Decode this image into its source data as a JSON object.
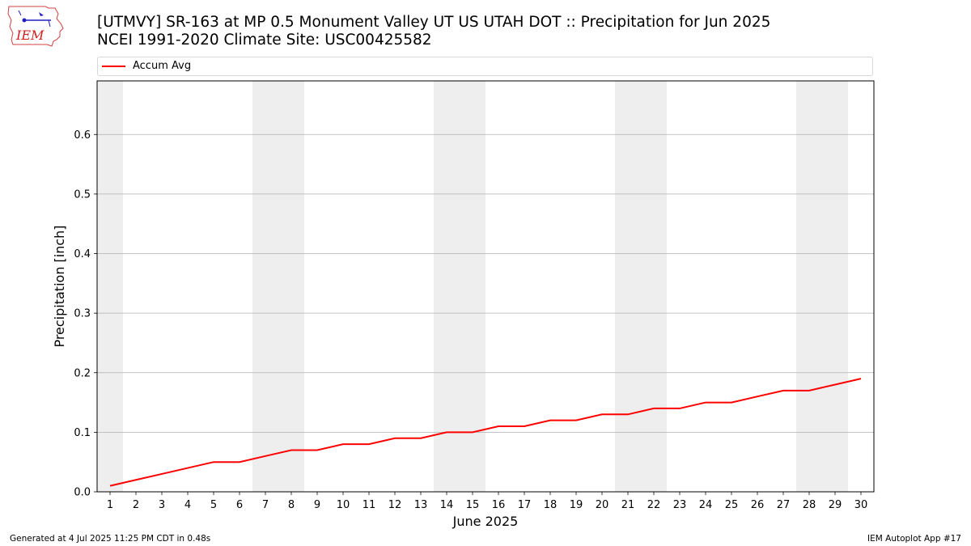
{
  "title": {
    "line1": "[UTMVY] SR-163 at MP 0.5 Monument Valley UT US UTAH DOT :: Precipitation for Jun 2025",
    "line2": "NCEI 1991-2020 Climate Site: USC00425582"
  },
  "logo": {
    "text": "IEM"
  },
  "footer": {
    "left": "Generated at 4 Jul 2025 11:25 PM CDT in 0.48s",
    "right": "IEM Autoplot App #17"
  },
  "colors": {
    "line": "#ff0000",
    "weekend": "#eeeeee",
    "grid": "#b0b0b0"
  },
  "chart_data": {
    "type": "line",
    "xlabel": "June 2025",
    "ylabel": "Precipitation [inch]",
    "ylim": [
      0,
      0.69
    ],
    "yticks": [
      "0.0",
      "0.1",
      "0.2",
      "0.3",
      "0.4",
      "0.5",
      "0.6"
    ],
    "x": [
      1,
      2,
      3,
      4,
      5,
      6,
      7,
      8,
      9,
      10,
      11,
      12,
      13,
      14,
      15,
      16,
      17,
      18,
      19,
      20,
      21,
      22,
      23,
      24,
      25,
      26,
      27,
      28,
      29,
      30
    ],
    "grid": "horizontal",
    "legend_position": "top",
    "weekend_bands": [
      [
        1,
        1
      ],
      [
        7,
        8
      ],
      [
        14,
        15
      ],
      [
        21,
        22
      ],
      [
        28,
        29
      ]
    ],
    "series": [
      {
        "name": "Accum Avg",
        "values": [
          0.01,
          0.02,
          0.03,
          0.04,
          0.05,
          0.05,
          0.06,
          0.07,
          0.07,
          0.08,
          0.08,
          0.09,
          0.09,
          0.1,
          0.1,
          0.11,
          0.11,
          0.12,
          0.12,
          0.13,
          0.13,
          0.14,
          0.14,
          0.15,
          0.15,
          0.16,
          0.17,
          0.17,
          0.18,
          0.19
        ]
      }
    ]
  }
}
